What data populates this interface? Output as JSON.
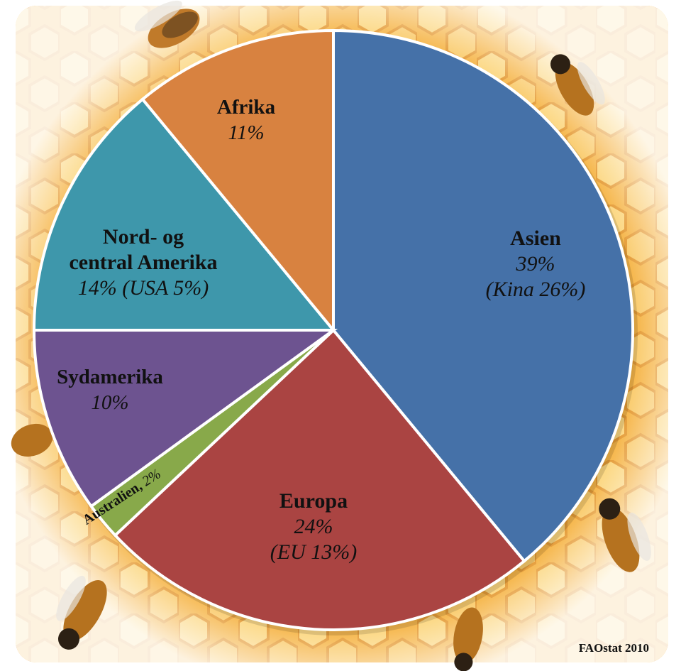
{
  "source": "FAOstat 2010",
  "colors": {
    "Asien": "#4571a8",
    "Europa": "#aa4442",
    "Australien": "#88a94a",
    "Sydamerika": "#6d5390",
    "Nord- og central Amerika": "#3e97ab",
    "Afrika": "#d88240",
    "honeycomb": "#f7b533"
  },
  "background_image": "honeycomb-with-bees",
  "chart_data": {
    "type": "pie",
    "title": "",
    "slices": [
      {
        "name": "Asien",
        "value": 39,
        "lines": [
          [
            "Asien",
            "bold"
          ],
          [
            "39%",
            "italic"
          ],
          [
            "(Kina 26%)",
            "italic"
          ]
        ]
      },
      {
        "name": "Europa",
        "value": 24,
        "lines": [
          [
            "Europa",
            "bold"
          ],
          [
            "24%",
            "italic"
          ],
          [
            "(EU 13%)",
            "italic"
          ]
        ]
      },
      {
        "name": "Australien",
        "value": 2,
        "lines": [
          [
            "Australien,",
            "bold"
          ],
          [
            " 2%",
            "italic"
          ]
        ]
      },
      {
        "name": "Sydamerika",
        "value": 10,
        "lines": [
          [
            "Sydamerika",
            "bold"
          ],
          [
            "10%",
            "italic"
          ]
        ]
      },
      {
        "name": "Nord- og central Amerika",
        "value": 14,
        "lines": [
          [
            "Nord- og",
            "bold"
          ],
          [
            "central Amerika",
            "bold"
          ],
          [
            "14% (USA 5%)",
            "italic"
          ]
        ]
      },
      {
        "name": "Afrika",
        "value": 11,
        "lines": [
          [
            "Afrika",
            "bold"
          ],
          [
            "11%",
            "italic"
          ]
        ]
      }
    ],
    "start_angle_deg": 0,
    "direction": "clockwise"
  }
}
